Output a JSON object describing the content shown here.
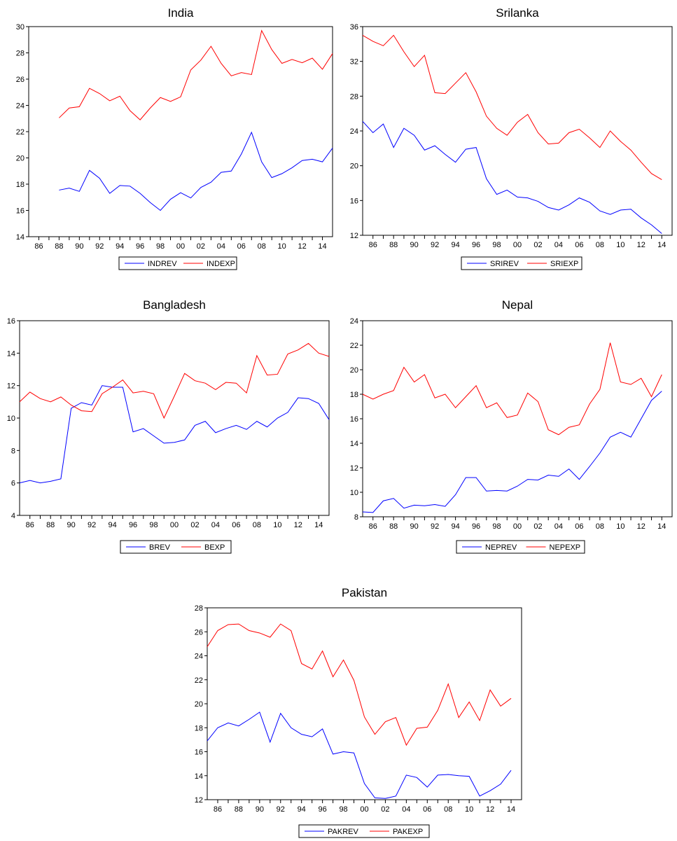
{
  "chart_data": [
    {
      "type": "line",
      "title": "India",
      "x": [
        1985,
        1986,
        1987,
        1988,
        1989,
        1990,
        1991,
        1992,
        1993,
        1994,
        1995,
        1996,
        1997,
        1998,
        1999,
        2000,
        2001,
        2002,
        2003,
        2004,
        2005,
        2006,
        2007,
        2008,
        2009,
        2010,
        2011,
        2012,
        2013,
        2014,
        2015
      ],
      "xticks": [
        "86",
        "88",
        "90",
        "92",
        "94",
        "96",
        "98",
        "00",
        "02",
        "04",
        "06",
        "08",
        "10",
        "12",
        "14"
      ],
      "yticks": [
        "14",
        "16",
        "18",
        "20",
        "22",
        "24",
        "26",
        "28",
        "30"
      ],
      "xlim": [
        1985,
        2015
      ],
      "ylim": [
        14,
        30
      ],
      "legend": "bottom-center",
      "series": [
        {
          "name": "INDREV",
          "color": "#0000ff",
          "values": [
            null,
            null,
            null,
            17.55,
            17.7,
            17.45,
            19.05,
            18.45,
            17.3,
            17.9,
            17.85,
            17.3,
            16.6,
            16.0,
            16.85,
            17.35,
            16.95,
            17.75,
            18.15,
            18.9,
            19.0,
            20.3,
            21.95,
            19.7,
            18.5,
            18.8,
            19.25,
            19.8,
            19.9,
            19.7,
            20.75
          ]
        },
        {
          "name": "INDEXP",
          "color": "#ff0000",
          "values": [
            null,
            null,
            null,
            23.05,
            23.8,
            23.9,
            25.3,
            24.9,
            24.35,
            24.7,
            23.6,
            22.9,
            23.8,
            24.6,
            24.3,
            24.65,
            26.7,
            27.45,
            28.5,
            27.2,
            26.25,
            26.5,
            26.35,
            29.7,
            28.25,
            27.2,
            27.5,
            27.25,
            27.6,
            26.75,
            27.95
          ]
        }
      ]
    },
    {
      "type": "line",
      "title": "Srilanka",
      "x": [
        1985,
        1986,
        1987,
        1988,
        1989,
        1990,
        1991,
        1992,
        1993,
        1994,
        1995,
        1996,
        1997,
        1998,
        1999,
        2000,
        2001,
        2002,
        2003,
        2004,
        2005,
        2006,
        2007,
        2008,
        2009,
        2010,
        2011,
        2012,
        2013,
        2014
      ],
      "xticks": [
        "86",
        "88",
        "90",
        "92",
        "94",
        "96",
        "98",
        "00",
        "02",
        "04",
        "06",
        "08",
        "10",
        "12",
        "14"
      ],
      "yticks": [
        "12",
        "16",
        "20",
        "24",
        "28",
        "32",
        "36"
      ],
      "xlim": [
        1985,
        2015
      ],
      "ylim": [
        12,
        36
      ],
      "legend": "bottom-center",
      "series": [
        {
          "name": "SRIREV",
          "color": "#0000ff",
          "values": [
            25.1,
            23.8,
            24.8,
            22.1,
            24.3,
            23.5,
            21.8,
            22.3,
            21.3,
            20.4,
            21.9,
            22.1,
            18.5,
            16.7,
            17.2,
            16.4,
            16.3,
            15.9,
            15.2,
            14.9,
            15.5,
            16.3,
            15.8,
            14.8,
            14.4,
            14.9,
            15.0,
            14.0,
            13.2,
            12.2
          ]
        },
        {
          "name": "SRIEXP",
          "color": "#ff0000",
          "values": [
            35.0,
            34.3,
            33.8,
            35.0,
            33.1,
            31.4,
            32.7,
            28.4,
            28.3,
            29.5,
            30.7,
            28.5,
            25.7,
            24.3,
            23.5,
            25.0,
            25.9,
            23.8,
            22.5,
            22.6,
            23.8,
            24.2,
            23.2,
            22.1,
            24.0,
            22.8,
            21.8,
            20.4,
            19.1,
            18.4
          ]
        }
      ]
    },
    {
      "type": "line",
      "title": "Bangladesh",
      "x": [
        1985,
        1986,
        1987,
        1988,
        1989,
        1990,
        1991,
        1992,
        1993,
        1994,
        1995,
        1996,
        1997,
        1998,
        1999,
        2000,
        2001,
        2002,
        2003,
        2004,
        2005,
        2006,
        2007,
        2008,
        2009,
        2010,
        2011,
        2012,
        2013,
        2014,
        2015
      ],
      "xticks": [
        "86",
        "88",
        "90",
        "92",
        "94",
        "96",
        "98",
        "00",
        "02",
        "04",
        "06",
        "08",
        "10",
        "12",
        "14"
      ],
      "yticks": [
        "4",
        "6",
        "8",
        "10",
        "12",
        "14",
        "16"
      ],
      "xlim": [
        1985,
        2015
      ],
      "ylim": [
        4,
        16
      ],
      "legend": "bottom-center",
      "series": [
        {
          "name": "BREV",
          "color": "#0000ff",
          "values": [
            6.0,
            6.15,
            6.0,
            6.1,
            6.25,
            10.6,
            10.95,
            10.8,
            12.0,
            11.9,
            11.9,
            9.15,
            9.35,
            8.9,
            8.45,
            8.5,
            8.65,
            9.55,
            9.8,
            9.1,
            9.35,
            9.55,
            9.3,
            9.8,
            9.45,
            10.0,
            10.35,
            11.25,
            11.2,
            10.9,
            9.9
          ]
        },
        {
          "name": "BEXP",
          "color": "#ff0000",
          "values": [
            11.0,
            11.6,
            11.2,
            11.0,
            11.3,
            10.8,
            10.45,
            10.4,
            11.5,
            11.9,
            12.35,
            11.55,
            11.65,
            11.5,
            10.0,
            11.35,
            12.75,
            12.3,
            12.15,
            11.75,
            12.2,
            12.15,
            11.55,
            13.85,
            12.65,
            12.7,
            13.95,
            14.2,
            14.6,
            14.0,
            13.8
          ]
        }
      ]
    },
    {
      "type": "line",
      "title": "Nepal",
      "x": [
        1985,
        1986,
        1987,
        1988,
        1989,
        1990,
        1991,
        1992,
        1993,
        1994,
        1995,
        1996,
        1997,
        1998,
        1999,
        2000,
        2001,
        2002,
        2003,
        2004,
        2005,
        2006,
        2007,
        2008,
        2009,
        2010,
        2011,
        2012,
        2013,
        2014
      ],
      "xticks": [
        "86",
        "88",
        "90",
        "92",
        "94",
        "96",
        "98",
        "00",
        "02",
        "04",
        "06",
        "08",
        "10",
        "12",
        "14"
      ],
      "yticks": [
        "8",
        "10",
        "12",
        "14",
        "16",
        "18",
        "20",
        "22",
        "24"
      ],
      "xlim": [
        1985,
        2015
      ],
      "ylim": [
        8,
        24
      ],
      "legend": "bottom-center",
      "series": [
        {
          "name": "NEPREV",
          "color": "#0000ff",
          "values": [
            8.4,
            8.35,
            9.3,
            9.5,
            8.7,
            8.95,
            8.9,
            9.0,
            8.85,
            9.8,
            11.2,
            11.2,
            10.1,
            10.15,
            10.1,
            10.5,
            11.05,
            11.0,
            11.4,
            11.3,
            11.9,
            11.05,
            12.1,
            13.2,
            14.5,
            14.9,
            14.5,
            16.0,
            17.5,
            18.25
          ]
        },
        {
          "name": "NEPEXP",
          "color": "#ff0000",
          "values": [
            18.0,
            17.6,
            18.0,
            18.3,
            20.2,
            19.0,
            19.6,
            17.7,
            18.0,
            16.9,
            17.8,
            18.7,
            16.9,
            17.3,
            16.1,
            16.3,
            18.1,
            17.4,
            15.1,
            14.7,
            15.3,
            15.5,
            17.2,
            18.4,
            22.2,
            19.0,
            18.8,
            19.3,
            17.8,
            19.6
          ]
        }
      ]
    },
    {
      "type": "line",
      "title": "Pakistan",
      "x": [
        1985,
        1986,
        1987,
        1988,
        1989,
        1990,
        1991,
        1992,
        1993,
        1994,
        1995,
        1996,
        1997,
        1998,
        1999,
        2000,
        2001,
        2002,
        2003,
        2004,
        2005,
        2006,
        2007,
        2008,
        2009,
        2010,
        2011,
        2012,
        2013,
        2014
      ],
      "xticks": [
        "86",
        "88",
        "90",
        "92",
        "94",
        "96",
        "98",
        "00",
        "02",
        "04",
        "06",
        "08",
        "10",
        "12",
        "14"
      ],
      "yticks": [
        "12",
        "14",
        "16",
        "18",
        "20",
        "22",
        "24",
        "26",
        "28"
      ],
      "xlim": [
        1985,
        2015
      ],
      "ylim": [
        12,
        28
      ],
      "legend": "bottom-center",
      "series": [
        {
          "name": "PAKREV",
          "color": "#0000ff",
          "values": [
            16.9,
            18.0,
            18.4,
            18.15,
            18.7,
            19.3,
            16.8,
            19.2,
            18.0,
            17.45,
            17.25,
            17.9,
            15.8,
            16.0,
            15.9,
            13.35,
            12.15,
            12.1,
            12.3,
            14.05,
            13.85,
            13.05,
            14.05,
            14.1,
            14.0,
            13.95,
            12.3,
            12.75,
            13.3,
            14.45
          ]
        },
        {
          "name": "PAKEXP",
          "color": "#ff0000",
          "values": [
            24.75,
            26.1,
            26.6,
            26.65,
            26.1,
            25.9,
            25.55,
            26.65,
            26.1,
            23.35,
            22.9,
            24.4,
            22.25,
            23.65,
            21.95,
            18.9,
            17.45,
            18.5,
            18.85,
            16.55,
            17.95,
            18.05,
            19.45,
            21.65,
            18.85,
            20.15,
            18.6,
            21.15,
            19.8,
            20.45
          ]
        }
      ]
    }
  ]
}
